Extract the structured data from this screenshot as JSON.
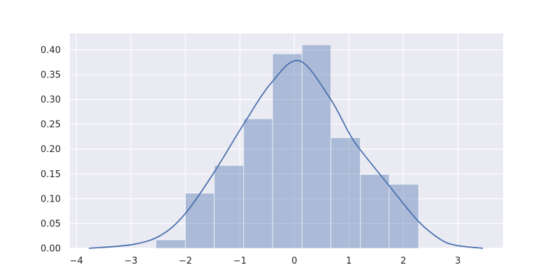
{
  "chart_data": {
    "type": "bar",
    "subtype": "histogram-with-kde",
    "title": "",
    "xlabel": "",
    "ylabel": "",
    "xlim": [
      -4.12,
      3.83
    ],
    "ylim": [
      0,
      0.433
    ],
    "grid": true,
    "x_ticks": [
      "−4",
      "−3",
      "−2",
      "−1",
      "0",
      "1",
      "2",
      "3"
    ],
    "x_tick_values": [
      -4,
      -3,
      -2,
      -1,
      0,
      1,
      2,
      3
    ],
    "y_ticks": [
      "0.00",
      "0.05",
      "0.10",
      "0.15",
      "0.20",
      "0.25",
      "0.30",
      "0.35",
      "0.40"
    ],
    "y_tick_values": [
      0,
      0.05,
      0.1,
      0.15,
      0.2,
      0.25,
      0.3,
      0.35,
      0.4
    ],
    "bin_edges": [
      -2.54,
      -2.0,
      -1.47,
      -0.93,
      -0.4,
      0.14,
      0.67,
      1.21,
      1.74,
      2.28
    ],
    "values": [
      0.017,
      0.111,
      0.167,
      0.261,
      0.392,
      0.41,
      0.223,
      0.149,
      0.129
    ],
    "kde": {
      "x": [
        -3.77,
        -2.95,
        -2.44,
        -2.01,
        -1.48,
        -0.95,
        -0.42,
        0.09,
        0.65,
        1.0,
        1.2,
        1.71,
        2.27,
        2.68,
        2.97,
        3.46
      ],
      "y": [
        0.0,
        0.008,
        0.027,
        0.069,
        0.152,
        0.247,
        0.334,
        0.378,
        0.303,
        0.233,
        0.2,
        0.13,
        0.055,
        0.018,
        0.006,
        0.0
      ]
    },
    "colors": {
      "background": "#eaeaf2",
      "grid": "#ffffff",
      "bar": "#4c72b0",
      "line": "#4c72b0"
    }
  }
}
